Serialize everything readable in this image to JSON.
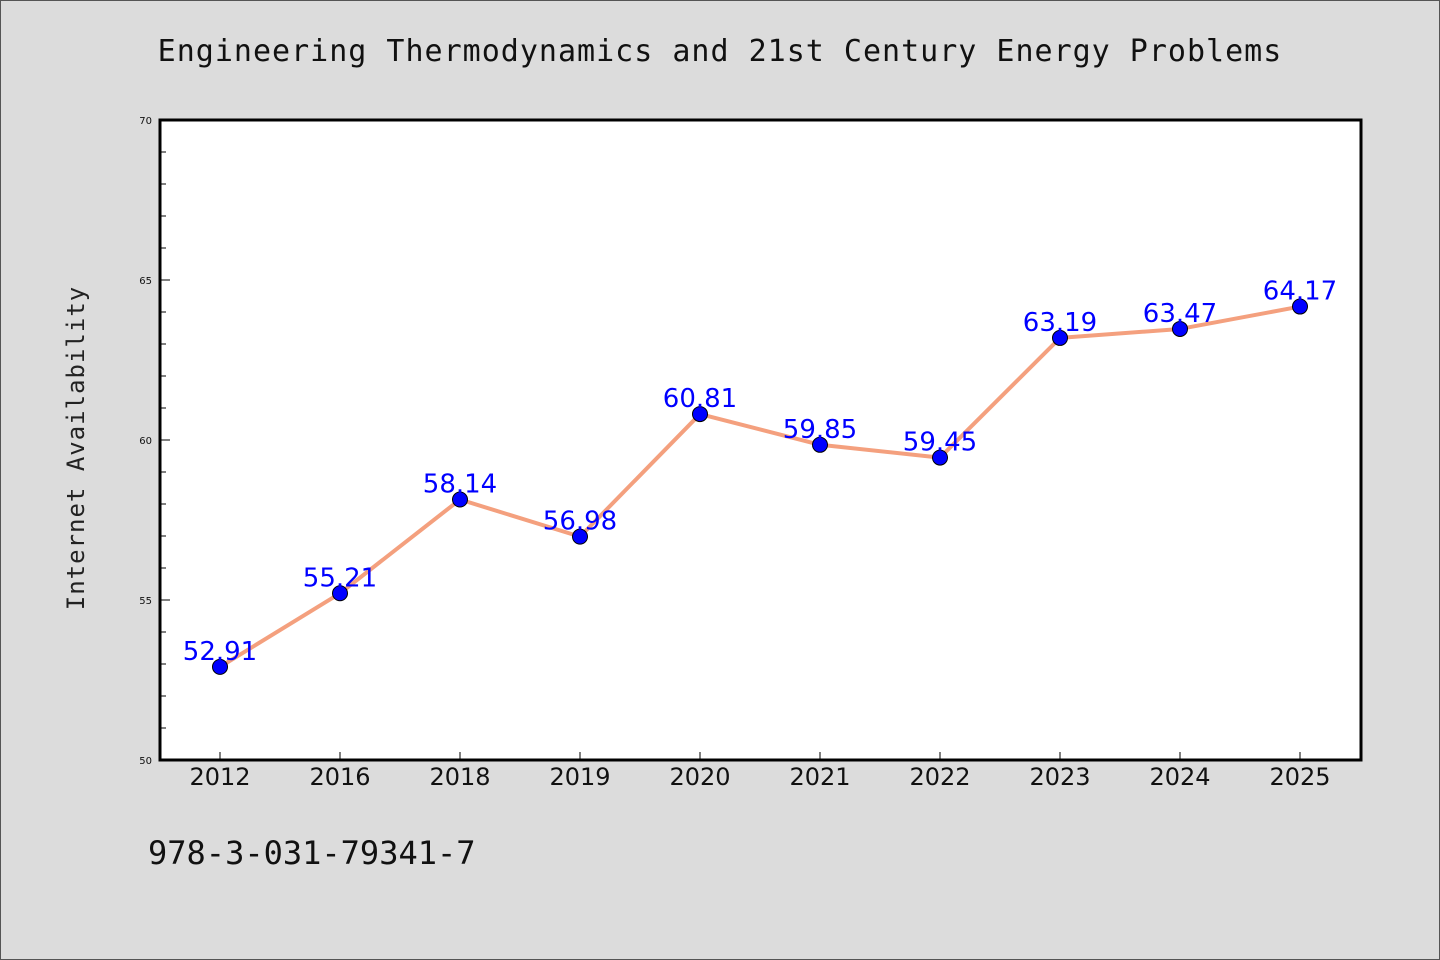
{
  "colors": {
    "background": "#dcdcdc",
    "plot_background": "#ffffff",
    "line": "#f4a07e",
    "marker": "#0000ff",
    "data_label": "#0000ff"
  },
  "footer_text": "978-3-031-79341-7",
  "chart_data": {
    "type": "line",
    "title": "Engineering Thermodynamics and 21st Century Energy Problems",
    "xlabel": "",
    "ylabel": "Internet Availability",
    "categories": [
      "2012",
      "2016",
      "2018",
      "2019",
      "2020",
      "2021",
      "2022",
      "2023",
      "2024",
      "2025"
    ],
    "series": [
      {
        "values": [
          52.91,
          55.21,
          58.14,
          56.98,
          60.81,
          59.85,
          59.45,
          63.19,
          63.47,
          64.17
        ],
        "labels": [
          "52.91",
          "55.21",
          "58.14",
          "56.98",
          "60.81",
          "59.85",
          "59.45",
          "63.19",
          "63.47",
          "64.17"
        ]
      }
    ],
    "ylim": [
      50,
      70
    ],
    "yticks": [
      50,
      55,
      60,
      65,
      70
    ],
    "grid": false,
    "legend": "none"
  }
}
